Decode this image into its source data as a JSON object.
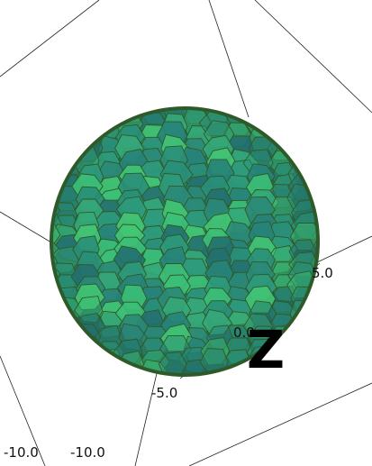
{
  "axis_labels": {
    "y_ticks": [
      "5.0",
      "0.0",
      "-5.0"
    ],
    "x_ticks": [
      "-10.0",
      "-10.0"
    ],
    "axis_name": "Z"
  }
}
